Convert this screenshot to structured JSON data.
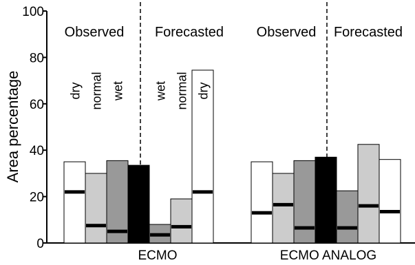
{
  "chart_data": {
    "type": "bar",
    "ylabel": "Area percentage",
    "ylim": [
      0,
      100
    ],
    "yticks": [
      0,
      20,
      40,
      60,
      80,
      100
    ],
    "grid": false,
    "groups": [
      {
        "name": "ECMO",
        "regions": [
          "Observed",
          "Forecasted"
        ],
        "bars": [
          {
            "label": "dry",
            "value": 35,
            "marker": 22,
            "fill": "#ffffff"
          },
          {
            "label": "normal",
            "value": 30,
            "marker": 7.5,
            "fill": "#cccccc"
          },
          {
            "label": "wet",
            "value": 35.5,
            "marker": 5,
            "fill": "#999999"
          },
          {
            "label": "",
            "value": 33.5,
            "marker": null,
            "fill": "#000000"
          },
          {
            "label": "wet",
            "value": 8,
            "marker": 3.5,
            "fill": "#999999"
          },
          {
            "label": "normal",
            "value": 19,
            "marker": 7,
            "fill": "#cccccc"
          },
          {
            "label": "dry",
            "value": 74.5,
            "marker": 22,
            "fill": "#ffffff"
          }
        ]
      },
      {
        "name": "ECMO ANALOG",
        "regions": [
          "Observed",
          "Forecasted"
        ],
        "bars": [
          {
            "label": "",
            "value": 35,
            "marker": 13,
            "fill": "#ffffff"
          },
          {
            "label": "",
            "value": 30,
            "marker": 16.5,
            "fill": "#cccccc"
          },
          {
            "label": "",
            "value": 35.5,
            "marker": 6.5,
            "fill": "#999999"
          },
          {
            "label": "",
            "value": 37,
            "marker": null,
            "fill": "#000000"
          },
          {
            "label": "",
            "value": 22.5,
            "marker": 6.5,
            "fill": "#999999"
          },
          {
            "label": "",
            "value": 42.5,
            "marker": 16,
            "fill": "#cccccc"
          },
          {
            "label": "",
            "value": 36,
            "marker": 13.5,
            "fill": "#ffffff"
          }
        ]
      }
    ]
  }
}
